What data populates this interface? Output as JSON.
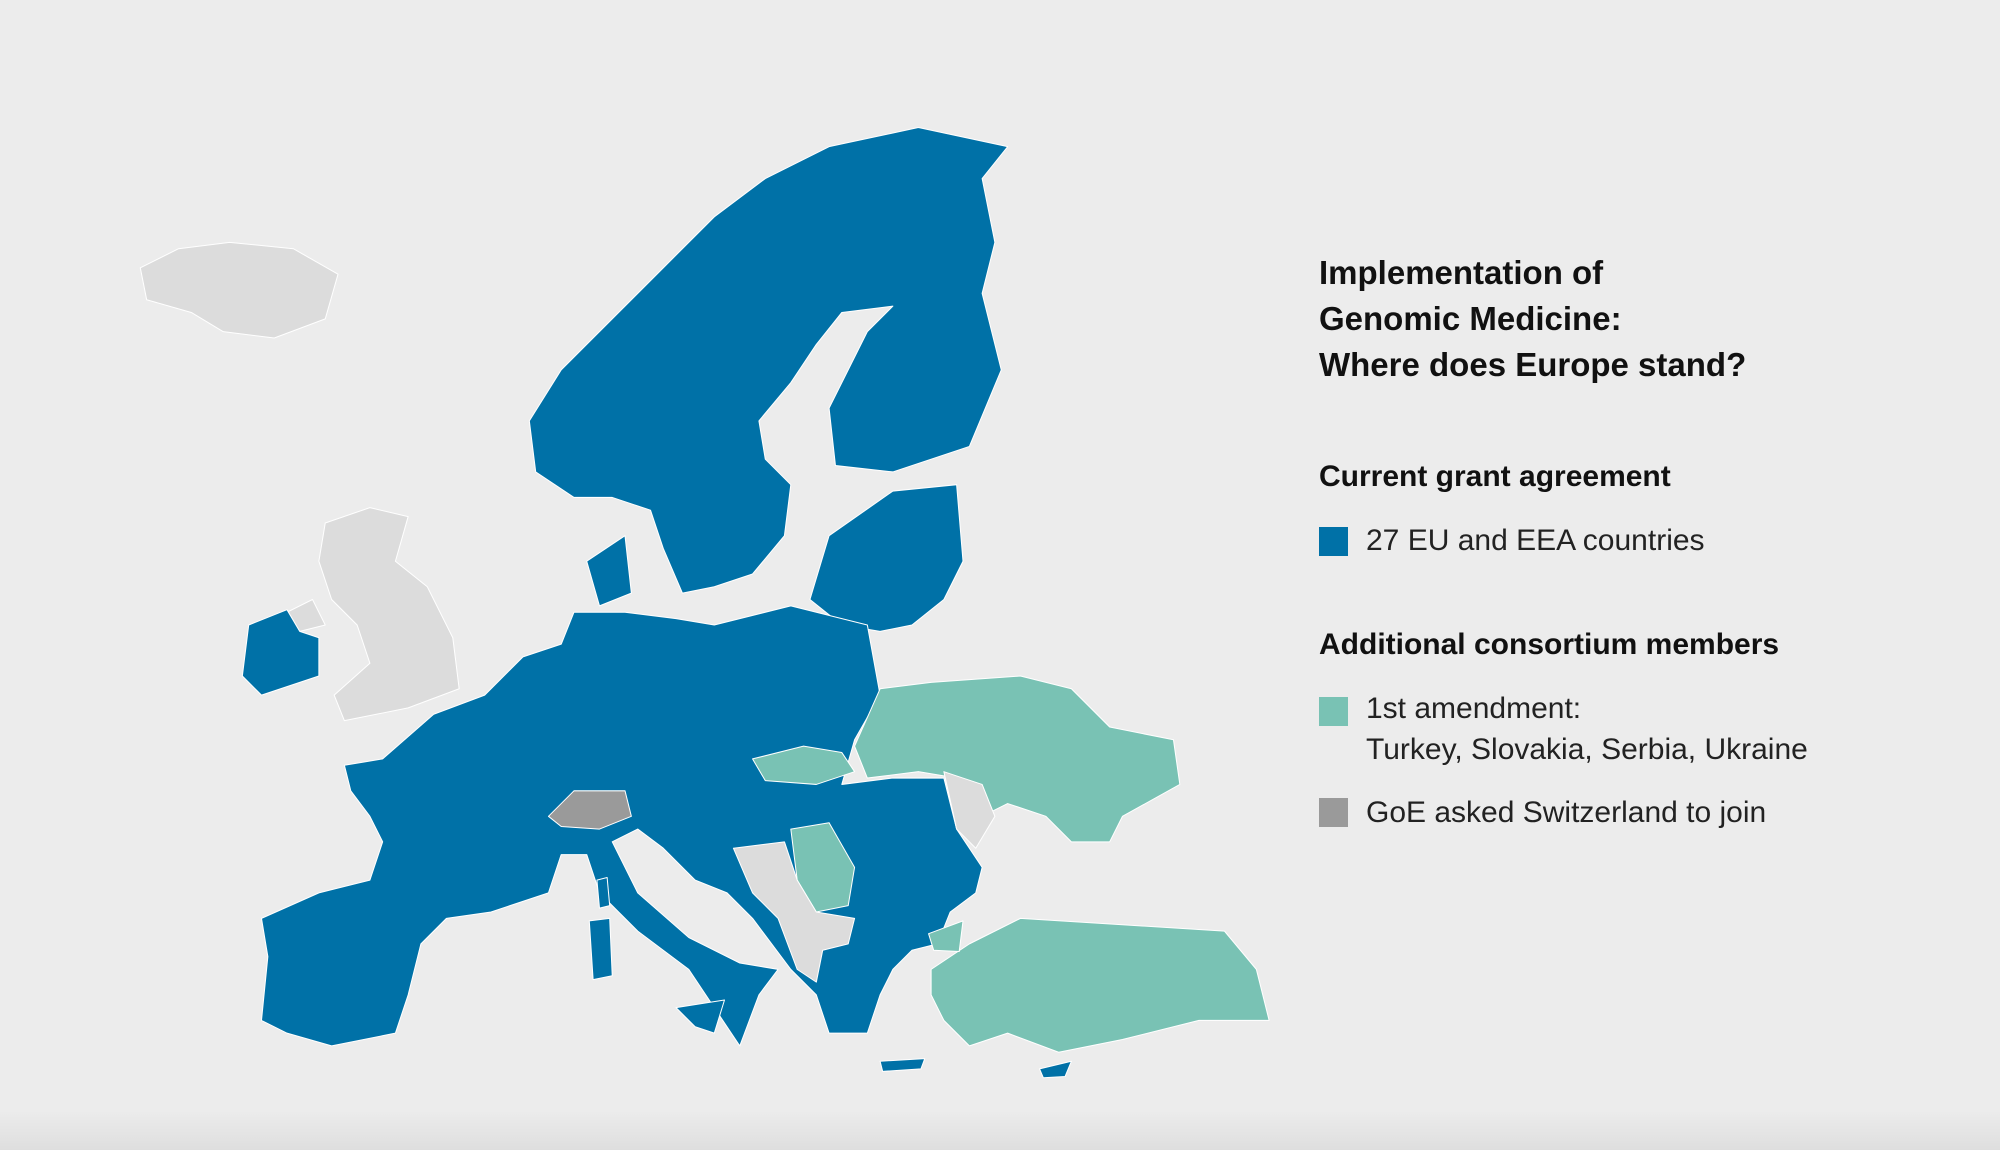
{
  "title_lines": [
    "Implementation of",
    "Genomic Medicine:",
    "Where does Europe stand?"
  ],
  "current_grant": {
    "heading": "Current grant agreement",
    "items": [
      {
        "label": "27 EU and EEA countries",
        "color": "#0071a7"
      }
    ]
  },
  "additional_members": {
    "heading": "Additional consortium members",
    "items": [
      {
        "label": "1st amendment:",
        "detail": "Turkey, Slovakia, Serbia, Ukraine",
        "color": "#79c2b4"
      },
      {
        "label": "GoE asked Switzerland to join",
        "color": "#9a9a9a"
      }
    ]
  }
}
